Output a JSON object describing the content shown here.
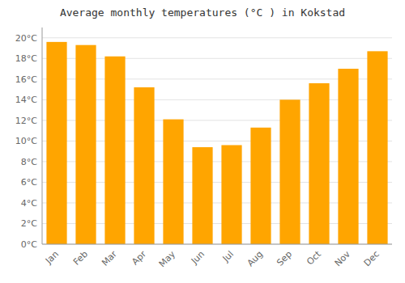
{
  "chart_data": {
    "type": "bar",
    "title": "Average monthly temperatures (°C ) in Kokstad",
    "categories": [
      "Jan",
      "Feb",
      "Mar",
      "Apr",
      "May",
      "Jun",
      "Jul",
      "Aug",
      "Sep",
      "Oct",
      "Nov",
      "Dec"
    ],
    "values": [
      19.6,
      19.3,
      18.2,
      15.2,
      12.1,
      9.4,
      9.6,
      11.3,
      14.0,
      15.6,
      17.0,
      18.7
    ],
    "color": "#FFA500",
    "ylim": [
      0,
      21
    ],
    "yticks": [
      {
        "value": 0,
        "label": "0°C"
      },
      {
        "value": 2,
        "label": "2°C"
      },
      {
        "value": 4,
        "label": "4°C"
      },
      {
        "value": 6,
        "label": "6°C"
      },
      {
        "value": 8,
        "label": "8°C"
      },
      {
        "value": 10,
        "label": "10°C"
      },
      {
        "value": 12,
        "label": "12°C"
      },
      {
        "value": 14,
        "label": "14°C"
      },
      {
        "value": 16,
        "label": "16°C"
      },
      {
        "value": 18,
        "label": "18°C"
      },
      {
        "value": 20,
        "label": "20°C"
      }
    ],
    "grid": true
  }
}
